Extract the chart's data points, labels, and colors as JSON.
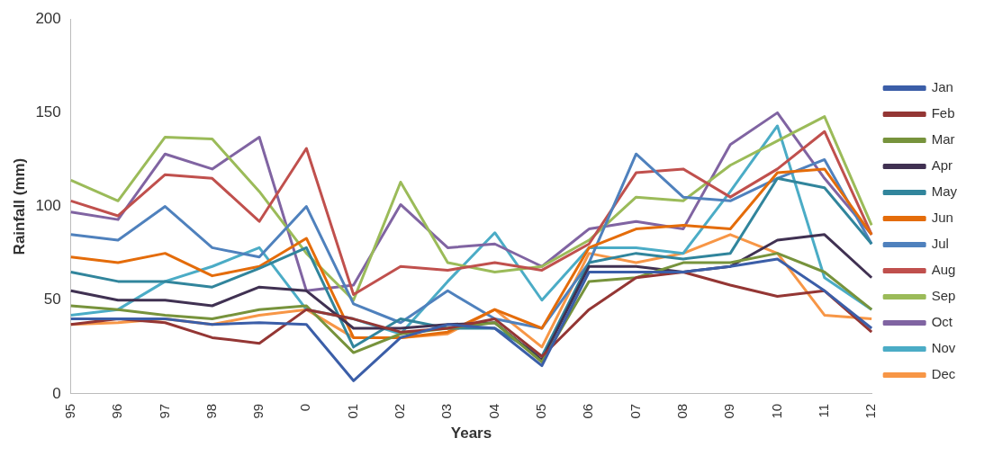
{
  "chart_data": {
    "type": "line",
    "xlabel": "Years",
    "ylabel": "Rainfall (mm)",
    "categories": [
      "95",
      "96",
      "97",
      "98",
      "99",
      "0",
      "01",
      "02",
      "03",
      "04",
      "05",
      "06",
      "07",
      "08",
      "09",
      "10",
      "11",
      "12"
    ],
    "ylim": [
      0,
      200
    ],
    "yticks": [
      0,
      50,
      100,
      150,
      200
    ],
    "grid": false,
    "legend": "right",
    "marker": "none",
    "series": [
      {
        "name": "Jan",
        "color": "#3b5ea8",
        "values": [
          40,
          40,
          40,
          37,
          38,
          37,
          7,
          30,
          37,
          35,
          15,
          65,
          65,
          65,
          68,
          72,
          55,
          35
        ]
      },
      {
        "name": "Feb",
        "color": "#943634",
        "values": [
          37,
          40,
          38,
          30,
          27,
          45,
          40,
          33,
          35,
          40,
          20,
          45,
          62,
          65,
          58,
          52,
          55,
          33
        ]
      },
      {
        "name": "Mar",
        "color": "#77933c",
        "values": [
          47,
          45,
          42,
          40,
          45,
          47,
          22,
          32,
          35,
          38,
          17,
          60,
          62,
          70,
          70,
          75,
          65,
          45
        ]
      },
      {
        "name": "Apr",
        "color": "#403152",
        "values": [
          55,
          50,
          50,
          47,
          57,
          55,
          35,
          35,
          37,
          38,
          18,
          68,
          68,
          65,
          68,
          82,
          85,
          62
        ]
      },
      {
        "name": "May",
        "color": "#31859c",
        "values": [
          65,
          60,
          60,
          57,
          67,
          78,
          25,
          40,
          35,
          35,
          20,
          70,
          75,
          72,
          75,
          115,
          110,
          80
        ]
      },
      {
        "name": "Jun",
        "color": "#e46c0a",
        "values": [
          73,
          70,
          75,
          63,
          68,
          83,
          30,
          30,
          33,
          45,
          35,
          78,
          88,
          90,
          88,
          118,
          120,
          85
        ]
      },
      {
        "name": "Jul",
        "color": "#4f81bd",
        "values": [
          85,
          82,
          100,
          78,
          73,
          100,
          48,
          38,
          55,
          40,
          35,
          70,
          128,
          105,
          103,
          115,
          125,
          80
        ]
      },
      {
        "name": "Aug",
        "color": "#c0504d",
        "values": [
          103,
          95,
          117,
          115,
          92,
          131,
          53,
          68,
          66,
          70,
          66,
          80,
          118,
          120,
          105,
          120,
          140,
          85
        ]
      },
      {
        "name": "Sep",
        "color": "#9bbb59",
        "values": [
          114,
          103,
          137,
          136,
          108,
          75,
          50,
          113,
          70,
          65,
          68,
          82,
          105,
          103,
          122,
          135,
          148,
          90
        ]
      },
      {
        "name": "Oct",
        "color": "#8064a2",
        "values": [
          97,
          93,
          128,
          120,
          137,
          55,
          58,
          101,
          78,
          80,
          68,
          88,
          92,
          88,
          133,
          150,
          115,
          85
        ]
      },
      {
        "name": "Nov",
        "color": "#4bacc6",
        "values": [
          42,
          45,
          60,
          68,
          78,
          45,
          40,
          32,
          60,
          86,
          50,
          78,
          78,
          75,
          108,
          143,
          62,
          45
        ]
      },
      {
        "name": "Dec",
        "color": "#f79646",
        "values": [
          37,
          38,
          40,
          37,
          42,
          45,
          30,
          30,
          32,
          45,
          25,
          75,
          70,
          75,
          85,
          75,
          42,
          40
        ]
      }
    ]
  }
}
